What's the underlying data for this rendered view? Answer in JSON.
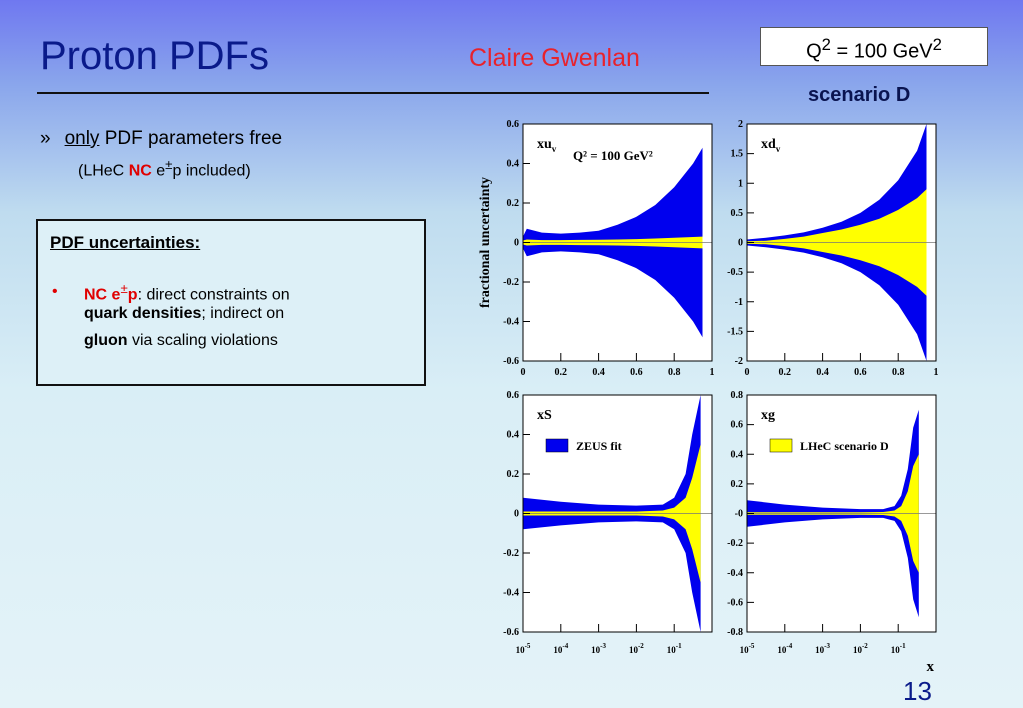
{
  "slide": {
    "title": "Proton PDFs",
    "author": "Claire Gwenlan",
    "q2_box": {
      "q": "Q",
      "sup": "2",
      "mid": " = 100 GeV",
      "sup2": "2"
    },
    "scenario": "scenario D",
    "bullet_marker": "»",
    "bullet_only": "only",
    "bullet_rest": " PDF parameters free",
    "sub_pre": "(LHeC ",
    "sub_nc": "NC",
    "sub_mid": " e",
    "sub_pm": "±",
    "sub_post": "p included)",
    "box_heading": "PDF uncertainties:",
    "box_dot": "•",
    "box_nc": "NC e",
    "box_pm": "±",
    "box_p": "p",
    "box_l1_rest": ": direct constraints on",
    "box_l2_bold": "quark densities",
    "box_l2_rest": "; indirect on",
    "box_l3_bold": "gluon",
    "box_l3_rest": " via scaling violations",
    "page_number": "13"
  },
  "colors": {
    "zeus": "#0000ee",
    "lhec": "#ffff00",
    "title": "#0a1a8a",
    "author": "#e8222c"
  },
  "chart_data": [
    {
      "type": "area",
      "panel": "xu_v",
      "label": "xu",
      "label_sub": "v",
      "inset": "Q² = 100 GeV²",
      "x_scale": "linear",
      "xlim": [
        0,
        1
      ],
      "ylim": [
        -0.6,
        0.6
      ],
      "yticks": [
        "0.6",
        "0.4",
        "0.2",
        "0",
        "-0.2",
        "-0.4",
        "-0.6"
      ],
      "xticks": [
        "0",
        "0.2",
        "0.4",
        "0.6",
        "0.8",
        "1"
      ],
      "ylabel": "fractional uncertainty",
      "x": [
        0.0,
        0.02,
        0.1,
        0.2,
        0.3,
        0.4,
        0.5,
        0.6,
        0.7,
        0.8,
        0.9,
        0.95
      ],
      "series": [
        {
          "name": "ZEUS fit",
          "upper": [
            0.03,
            0.07,
            0.05,
            0.045,
            0.05,
            0.06,
            0.09,
            0.13,
            0.19,
            0.28,
            0.4,
            0.48
          ],
          "lower": [
            -0.03,
            -0.07,
            -0.05,
            -0.045,
            -0.05,
            -0.06,
            -0.09,
            -0.13,
            -0.19,
            -0.28,
            -0.4,
            -0.48
          ]
        },
        {
          "name": "LHeC scenario D",
          "upper": [
            0.01,
            0.015,
            0.012,
            0.012,
            0.013,
            0.014,
            0.015,
            0.017,
            0.02,
            0.024,
            0.028,
            0.03
          ],
          "lower": [
            -0.01,
            -0.015,
            -0.012,
            -0.012,
            -0.013,
            -0.014,
            -0.015,
            -0.017,
            -0.02,
            -0.024,
            -0.028,
            -0.03
          ]
        }
      ]
    },
    {
      "type": "area",
      "panel": "xd_v",
      "label": "xd",
      "label_sub": "v",
      "x_scale": "linear",
      "xlim": [
        0,
        1
      ],
      "ylim": [
        -2,
        2
      ],
      "yticks": [
        "2",
        "1.5",
        "1",
        "0.5",
        "0",
        "-0.5",
        "-1",
        "-1.5",
        "-2"
      ],
      "xticks": [
        "0",
        "0.2",
        "0.4",
        "0.6",
        "0.8",
        "1"
      ],
      "x": [
        0.0,
        0.1,
        0.2,
        0.3,
        0.4,
        0.5,
        0.6,
        0.7,
        0.8,
        0.9,
        0.95
      ],
      "series": [
        {
          "name": "ZEUS fit",
          "upper": [
            0.05,
            0.08,
            0.12,
            0.17,
            0.25,
            0.35,
            0.5,
            0.72,
            1.05,
            1.55,
            2.0
          ],
          "lower": [
            -0.05,
            -0.08,
            -0.12,
            -0.17,
            -0.25,
            -0.35,
            -0.5,
            -0.72,
            -1.05,
            -1.55,
            -2.0
          ]
        },
        {
          "name": "LHeC scenario D",
          "upper": [
            0.02,
            0.03,
            0.06,
            0.1,
            0.16,
            0.22,
            0.3,
            0.4,
            0.55,
            0.75,
            0.9
          ],
          "lower": [
            -0.02,
            -0.03,
            -0.06,
            -0.1,
            -0.16,
            -0.22,
            -0.3,
            -0.4,
            -0.55,
            -0.75,
            -0.9
          ]
        }
      ]
    },
    {
      "type": "area",
      "panel": "xS",
      "label": "xS",
      "x_scale": "log",
      "xlim": [
        1e-05,
        1
      ],
      "ylim": [
        -0.6,
        0.6
      ],
      "yticks": [
        "0.6",
        "0.4",
        "0.2",
        "0",
        "-0.2",
        "-0.4",
        "-0.6"
      ],
      "xticks": [
        "10-5",
        "10-4",
        "10-3",
        "10-2",
        "10-1"
      ],
      "legend": "top-left",
      "x": [
        1e-05,
        0.0001,
        0.001,
        0.01,
        0.05,
        0.1,
        0.2,
        0.3,
        0.5
      ],
      "series": [
        {
          "name": "ZEUS fit",
          "upper": [
            0.08,
            0.06,
            0.045,
            0.04,
            0.045,
            0.08,
            0.2,
            0.4,
            0.6
          ],
          "lower": [
            -0.08,
            -0.06,
            -0.045,
            -0.04,
            -0.045,
            -0.08,
            -0.2,
            -0.4,
            -0.6
          ]
        },
        {
          "name": "LHeC scenario D",
          "upper": [
            0.01,
            0.01,
            0.01,
            0.01,
            0.015,
            0.03,
            0.08,
            0.18,
            0.35
          ],
          "lower": [
            -0.01,
            -0.01,
            -0.01,
            -0.01,
            -0.015,
            -0.03,
            -0.08,
            -0.18,
            -0.35
          ]
        }
      ]
    },
    {
      "type": "area",
      "panel": "xg",
      "label": "xg",
      "x_scale": "log",
      "xlim": [
        1e-05,
        1
      ],
      "ylim": [
        -0.8,
        0.8
      ],
      "yticks": [
        "0.8",
        "0.6",
        "0.4",
        "0.2",
        "-0",
        "-0.2",
        "-0.4",
        "-0.6",
        "-0.8"
      ],
      "xticks": [
        "10-5",
        "10-4",
        "10-3",
        "10-2",
        "10-1"
      ],
      "xlabel": "x",
      "legend": "top-left",
      "x": [
        1e-05,
        0.0001,
        0.001,
        0.01,
        0.04,
        0.08,
        0.12,
        0.18,
        0.25,
        0.35
      ],
      "series": [
        {
          "name": "ZEUS fit",
          "upper": [
            0.09,
            0.06,
            0.04,
            0.03,
            0.03,
            0.05,
            0.12,
            0.3,
            0.58,
            0.7
          ],
          "lower": [
            -0.09,
            -0.06,
            -0.04,
            -0.03,
            -0.03,
            -0.05,
            -0.12,
            -0.3,
            -0.58,
            -0.7
          ]
        },
        {
          "name": "LHeC scenario D",
          "upper": [
            0.008,
            0.008,
            0.008,
            0.008,
            0.01,
            0.02,
            0.05,
            0.15,
            0.32,
            0.4
          ],
          "lower": [
            -0.008,
            -0.008,
            -0.008,
            -0.008,
            -0.01,
            -0.02,
            -0.05,
            -0.15,
            -0.32,
            -0.4
          ]
        }
      ]
    }
  ]
}
